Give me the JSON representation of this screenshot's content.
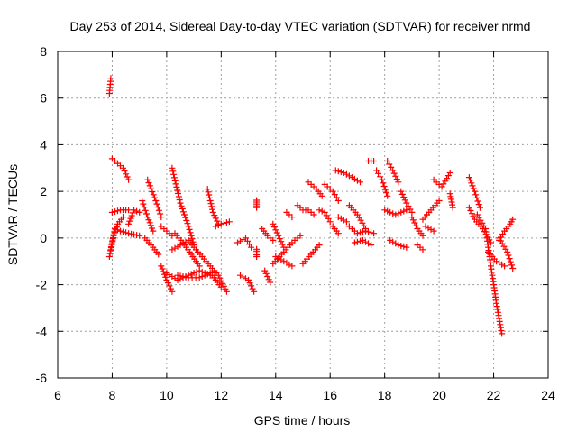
{
  "chart_data": {
    "type": "scatter",
    "title": "Day 253 of 2014, Sidereal Day-to-day VTEC variation (SDTVAR) for receiver nrmd",
    "xlabel": "GPS time / hours",
    "ylabel": "SDTVAR / TECUs",
    "xlim": [
      6,
      24
    ],
    "ylim": [
      -6,
      8
    ],
    "xticks": [
      6,
      8,
      10,
      12,
      14,
      16,
      18,
      20,
      22,
      24
    ],
    "yticks": [
      -6,
      -4,
      -2,
      0,
      2,
      4,
      6,
      8
    ],
    "xtick_labels": [
      "6",
      "8",
      "10",
      "12",
      "14",
      "16",
      "18",
      "20",
      "22",
      "24"
    ],
    "ytick_labels": [
      "-6",
      "-4",
      "-2",
      "0",
      "2",
      "4",
      "6",
      "8"
    ],
    "grid": true,
    "marker": "+",
    "color": "#ff0000",
    "segments": [
      {
        "x": [
          7.9,
          7.95
        ],
        "y": [
          6.2,
          6.85
        ]
      },
      {
        "x": [
          7.9,
          8.05,
          8.2,
          8.4
        ],
        "y": [
          -0.8,
          0.1,
          0.6,
          0.9
        ]
      },
      {
        "x": [
          7.95,
          8.1,
          8.3
        ],
        "y": [
          -0.5,
          0.4,
          0.3
        ]
      },
      {
        "x": [
          8.0,
          8.2,
          8.4,
          8.6
        ],
        "y": [
          3.4,
          3.2,
          3.0,
          2.5
        ]
      },
      {
        "x": [
          8.0,
          8.3,
          8.6
        ],
        "y": [
          1.1,
          1.2,
          1.2
        ]
      },
      {
        "x": [
          8.3,
          8.6,
          9.0
        ],
        "y": [
          0.3,
          0.2,
          0.1
        ]
      },
      {
        "x": [
          8.6,
          8.8,
          9.0
        ],
        "y": [
          0.6,
          1.2,
          1.1
        ]
      },
      {
        "x": [
          9.1,
          9.3,
          9.5
        ],
        "y": [
          1.6,
          0.9,
          0.3
        ]
      },
      {
        "x": [
          9.2,
          9.5,
          9.7
        ],
        "y": [
          0.0,
          -0.4,
          -0.7
        ]
      },
      {
        "x": [
          9.3,
          9.6,
          9.8
        ],
        "y": [
          2.5,
          1.6,
          0.9
        ]
      },
      {
        "x": [
          9.8,
          10.0,
          10.2
        ],
        "y": [
          0.5,
          0.3,
          0.1
        ]
      },
      {
        "x": [
          9.8,
          10.0,
          10.2
        ],
        "y": [
          -1.2,
          -1.8,
          -2.3
        ]
      },
      {
        "x": [
          10.2,
          10.5,
          10.8,
          11.0
        ],
        "y": [
          3.0,
          1.5,
          0.5,
          -0.3
        ]
      },
      {
        "x": [
          10.2,
          10.5,
          10.8,
          11.0,
          11.3,
          11.6,
          11.9,
          12.2
        ],
        "y": [
          -0.5,
          -0.3,
          -0.1,
          -0.4,
          -0.8,
          -1.2,
          -1.6,
          -2.3
        ]
      },
      {
        "x": [
          10.3,
          10.6,
          10.9,
          11.2
        ],
        "y": [
          0.2,
          -0.2,
          -0.7,
          -1.2
        ]
      },
      {
        "x": [
          10.0,
          10.4,
          10.8,
          11.2,
          11.6
        ],
        "y": [
          -1.5,
          -1.8,
          -1.6,
          -1.4,
          -1.6
        ]
      },
      {
        "x": [
          10.4,
          10.8,
          11.2,
          11.6,
          12.0
        ],
        "y": [
          -1.6,
          -1.7,
          -1.7,
          -1.5,
          -2.1
        ]
      },
      {
        "x": [
          11.5,
          11.7,
          11.9
        ],
        "y": [
          2.1,
          1.1,
          0.6
        ]
      },
      {
        "x": [
          11.8,
          12.0,
          12.3
        ],
        "y": [
          0.5,
          0.6,
          0.7
        ]
      },
      {
        "x": [
          12.6,
          12.9,
          13.1
        ],
        "y": [
          -0.2,
          0.0,
          -0.4
        ]
      },
      {
        "x": [
          12.7,
          13.0,
          13.2
        ],
        "y": [
          -1.6,
          -1.8,
          -2.3
        ]
      },
      {
        "x": [
          13.3
        ],
        "y": [
          1.3
        ]
      },
      {
        "x": [
          13.3
        ],
        "y": [
          -0.8
        ]
      },
      {
        "x": [
          13.5,
          13.7,
          13.9
        ],
        "y": [
          0.4,
          0.1,
          -0.1
        ]
      },
      {
        "x": [
          13.6,
          13.8
        ],
        "y": [
          -1.4,
          -1.9
        ]
      },
      {
        "x": [
          13.9,
          14.1,
          14.3
        ],
        "y": [
          0.6,
          0.1,
          -0.4
        ]
      },
      {
        "x": [
          13.9,
          14.3,
          14.6,
          14.9
        ],
        "y": [
          -1.1,
          -0.6,
          -0.2,
          0.1
        ]
      },
      {
        "x": [
          14.0,
          14.3,
          14.6
        ],
        "y": [
          -0.8,
          -1.0,
          -1.2
        ]
      },
      {
        "x": [
          14.4,
          14.6
        ],
        "y": [
          1.1,
          0.9
        ]
      },
      {
        "x": [
          14.8,
          15.0,
          15.2,
          15.4
        ],
        "y": [
          1.4,
          1.2,
          1.2,
          1.0
        ]
      },
      {
        "x": [
          15.0,
          15.3,
          15.6
        ],
        "y": [
          -1.1,
          -0.7,
          -0.3
        ]
      },
      {
        "x": [
          15.2,
          15.5,
          15.7
        ],
        "y": [
          2.4,
          2.1,
          1.8
        ]
      },
      {
        "x": [
          15.6,
          15.8,
          16.0
        ],
        "y": [
          1.2,
          1.1,
          0.7
        ]
      },
      {
        "x": [
          15.8,
          16.1,
          16.3
        ],
        "y": [
          2.3,
          2.0,
          1.6
        ]
      },
      {
        "x": [
          16.1,
          16.3
        ],
        "y": [
          0.5,
          0.2
        ]
      },
      {
        "x": [
          16.2,
          16.5,
          16.8,
          17.1
        ],
        "y": [
          2.9,
          2.8,
          2.6,
          2.4
        ]
      },
      {
        "x": [
          16.3,
          16.6
        ],
        "y": [
          0.9,
          0.7
        ]
      },
      {
        "x": [
          16.7,
          17.0,
          17.3,
          17.6
        ],
        "y": [
          0.5,
          0.2,
          0.3,
          0.2
        ]
      },
      {
        "x": [
          16.7,
          17.0,
          17.3
        ],
        "y": [
          1.4,
          1.0,
          0.4
        ]
      },
      {
        "x": [
          16.9,
          17.2,
          17.5
        ],
        "y": [
          -0.2,
          -0.1,
          -0.3
        ]
      },
      {
        "x": [
          17.4,
          17.6
        ],
        "y": [
          3.3,
          3.3
        ]
      },
      {
        "x": [
          17.7,
          17.9,
          18.1
        ],
        "y": [
          2.9,
          2.5,
          1.8
        ]
      },
      {
        "x": [
          18.1,
          18.3,
          18.5
        ],
        "y": [
          3.3,
          2.9,
          2.4
        ]
      },
      {
        "x": [
          18.0,
          18.4,
          18.8
        ],
        "y": [
          1.2,
          1.0,
          1.2
        ]
      },
      {
        "x": [
          18.2,
          18.5,
          18.8
        ],
        "y": [
          -0.1,
          -0.3,
          -0.4
        ]
      },
      {
        "x": [
          18.6,
          18.8,
          19.0
        ],
        "y": [
          2.0,
          1.5,
          1.1
        ]
      },
      {
        "x": [
          19.0,
          19.2,
          19.4
        ],
        "y": [
          0.9,
          0.4,
          0.1
        ]
      },
      {
        "x": [
          19.2,
          19.4
        ],
        "y": [
          -0.3,
          -0.5
        ]
      },
      {
        "x": [
          19.4,
          19.7,
          20.0
        ],
        "y": [
          0.8,
          1.2,
          1.6
        ]
      },
      {
        "x": [
          19.5,
          19.8
        ],
        "y": [
          0.5,
          0.3
        ]
      },
      {
        "x": [
          19.8,
          20.1,
          20.4
        ],
        "y": [
          2.5,
          2.2,
          2.8
        ]
      },
      {
        "x": [
          20.4,
          20.5
        ],
        "y": [
          1.9,
          1.3
        ]
      },
      {
        "x": [
          21.1,
          21.3,
          21.5
        ],
        "y": [
          2.6,
          2.0,
          1.3
        ]
      },
      {
        "x": [
          21.1,
          21.3,
          21.6,
          21.9
        ],
        "y": [
          1.3,
          0.8,
          0.4,
          -0.2
        ]
      },
      {
        "x": [
          21.4,
          21.7,
          21.9,
          22.1,
          22.3
        ],
        "y": [
          1.0,
          0.4,
          -1.2,
          -2.8,
          -4.1
        ]
      },
      {
        "x": [
          21.8,
          22.1,
          22.4
        ],
        "y": [
          -0.6,
          -1.0,
          -1.2
        ]
      },
      {
        "x": [
          22.2,
          22.5,
          22.7
        ],
        "y": [
          0.0,
          -0.6,
          -1.3
        ]
      },
      {
        "x": [
          22.2,
          22.4,
          22.6,
          22.7
        ],
        "y": [
          -0.1,
          0.3,
          0.6,
          0.8
        ]
      }
    ]
  }
}
